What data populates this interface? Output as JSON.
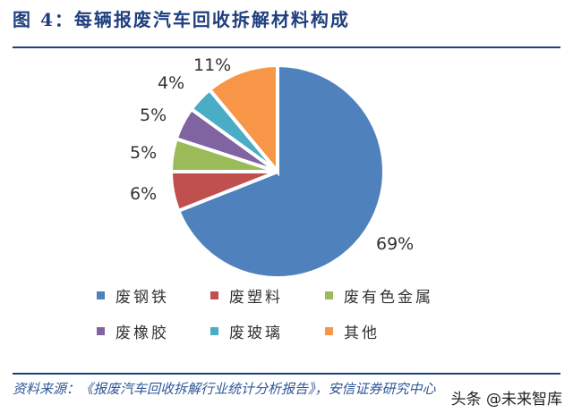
{
  "header": {
    "title": "图 4：每辆报废汽车回收拆解材料构成"
  },
  "footer": {
    "source": "资料来源：《报废汽车回收拆解行业统计分析报告》，安信证券研究中心",
    "watermark": "头条 @未来智库"
  },
  "chart_data": {
    "type": "pie",
    "title": "每辆报废汽车回收拆解材料构成",
    "categories": [
      "废钢铁",
      "废塑料",
      "废有色金属",
      "废橡胶",
      "废玻璃",
      "其他"
    ],
    "values": [
      69,
      6,
      5,
      5,
      4,
      11
    ],
    "labels": [
      "69%",
      "6%",
      "5%",
      "5%",
      "4%",
      "11%"
    ],
    "colors": [
      "#4f81bd",
      "#c0504d",
      "#9bbb59",
      "#8064a2",
      "#4bacc6",
      "#f79646"
    ],
    "start_angle": "12 o'clock, clockwise",
    "legend_position": "bottom"
  },
  "legend": [
    {
      "label": "废钢铁",
      "color": "#4f81bd"
    },
    {
      "label": "废塑料",
      "color": "#c0504d"
    },
    {
      "label": "废有色金属",
      "color": "#9bbb59"
    },
    {
      "label": "废橡胶",
      "color": "#8064a2"
    },
    {
      "label": "废玻璃",
      "color": "#4bacc6"
    },
    {
      "label": "其他",
      "color": "#f79646"
    }
  ]
}
